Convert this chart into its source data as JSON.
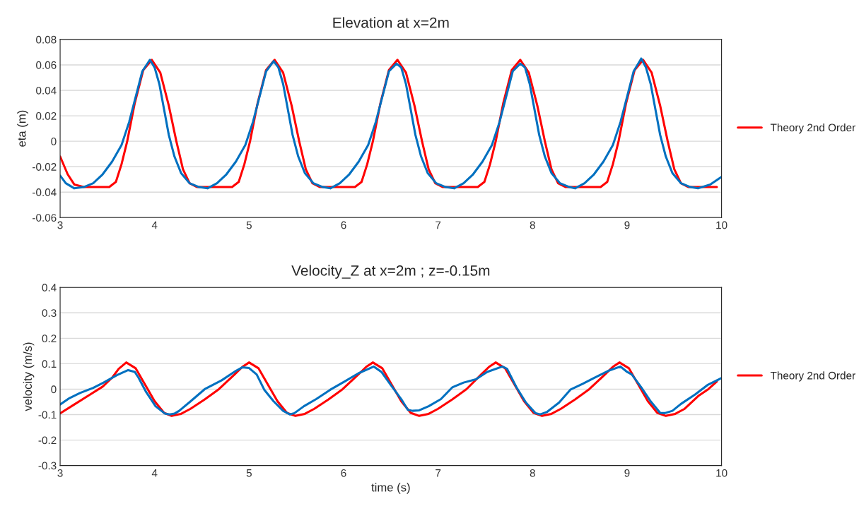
{
  "chart_data": [
    {
      "type": "line",
      "title": "Elevation at x=2m",
      "ylabel": "eta (m)",
      "xlim": [
        3,
        10
      ],
      "ylim": [
        -0.06,
        0.08
      ],
      "xticks": [
        3,
        4,
        5,
        6,
        7,
        8,
        9,
        10
      ],
      "yticks": [
        -0.06,
        -0.04,
        -0.02,
        0,
        0.02,
        0.04,
        0.06,
        0.08
      ],
      "grid": "y",
      "legend": "right",
      "series": [
        {
          "name": "Theory 2nd Order",
          "color": "#ff0000",
          "x": [
            3.0,
            3.08,
            3.15,
            3.25,
            3.4,
            3.52,
            3.59,
            3.65,
            3.71,
            3.79,
            3.88,
            3.97,
            4.06,
            4.15,
            4.23,
            4.3,
            4.37,
            4.45,
            4.62,
            4.82,
            4.89,
            4.95,
            5.01,
            5.09,
            5.18,
            5.27,
            5.36,
            5.45,
            5.53,
            5.6,
            5.67,
            5.75,
            5.92,
            6.12,
            6.19,
            6.25,
            6.31,
            6.39,
            6.48,
            6.57,
            6.66,
            6.75,
            6.83,
            6.9,
            6.97,
            7.05,
            7.22,
            7.42,
            7.49,
            7.55,
            7.61,
            7.69,
            7.78,
            7.87,
            7.96,
            8.05,
            8.13,
            8.2,
            8.27,
            8.35,
            8.52,
            8.72,
            8.79,
            8.85,
            8.91,
            8.99,
            9.08,
            9.17,
            9.26,
            9.35,
            9.43,
            9.5,
            9.57,
            9.65,
            9.8,
            9.95
          ],
          "values": [
            -0.012,
            -0.026,
            -0.034,
            -0.036,
            -0.036,
            -0.036,
            -0.032,
            -0.018,
            0.0,
            0.03,
            0.056,
            0.064,
            0.054,
            0.028,
            0.0,
            -0.022,
            -0.033,
            -0.036,
            -0.036,
            -0.036,
            -0.032,
            -0.018,
            0.0,
            0.03,
            0.056,
            0.064,
            0.054,
            0.028,
            0.0,
            -0.022,
            -0.033,
            -0.036,
            -0.036,
            -0.036,
            -0.032,
            -0.018,
            0.0,
            0.03,
            0.056,
            0.064,
            0.054,
            0.028,
            0.0,
            -0.022,
            -0.033,
            -0.036,
            -0.036,
            -0.036,
            -0.032,
            -0.018,
            0.0,
            0.03,
            0.056,
            0.064,
            0.054,
            0.028,
            0.0,
            -0.022,
            -0.033,
            -0.036,
            -0.036,
            -0.036,
            -0.032,
            -0.018,
            0.0,
            0.03,
            0.056,
            0.064,
            0.054,
            0.028,
            0.0,
            -0.022,
            -0.033,
            -0.036,
            -0.036,
            -0.036
          ]
        },
        {
          "color": "#0070c0",
          "x": [
            3.0,
            3.06,
            3.15,
            3.25,
            3.35,
            3.45,
            3.55,
            3.65,
            3.73,
            3.8,
            3.87,
            3.95,
            4.0,
            4.05,
            4.1,
            4.15,
            4.21,
            4.28,
            4.37,
            4.47,
            4.56,
            4.66,
            4.76,
            4.86,
            4.96,
            5.04,
            5.11,
            5.18,
            5.26,
            5.31,
            5.36,
            5.41,
            5.46,
            5.52,
            5.59,
            5.68,
            5.78,
            5.86,
            5.96,
            6.06,
            6.16,
            6.26,
            6.34,
            6.41,
            6.48,
            6.56,
            6.61,
            6.66,
            6.71,
            6.76,
            6.82,
            6.89,
            6.98,
            7.08,
            7.17,
            7.27,
            7.37,
            7.47,
            7.57,
            7.65,
            7.72,
            7.79,
            7.87,
            7.92,
            7.97,
            8.02,
            8.07,
            8.13,
            8.2,
            8.29,
            8.39,
            8.45,
            8.55,
            8.65,
            8.75,
            8.85,
            8.93,
            9.0,
            9.07,
            9.15,
            9.2,
            9.25,
            9.3,
            9.35,
            9.41,
            9.48,
            9.57,
            9.67,
            9.75,
            9.88,
            10.0
          ],
          "values": [
            -0.027,
            -0.033,
            -0.037,
            -0.036,
            -0.033,
            -0.026,
            -0.016,
            -0.003,
            0.015,
            0.035,
            0.055,
            0.064,
            0.058,
            0.045,
            0.025,
            0.005,
            -0.012,
            -0.025,
            -0.033,
            -0.036,
            -0.037,
            -0.033,
            -0.026,
            -0.016,
            -0.003,
            0.015,
            0.035,
            0.055,
            0.063,
            0.058,
            0.045,
            0.025,
            0.005,
            -0.012,
            -0.025,
            -0.033,
            -0.036,
            -0.037,
            -0.033,
            -0.026,
            -0.016,
            -0.003,
            0.015,
            0.035,
            0.055,
            0.061,
            0.058,
            0.045,
            0.025,
            0.005,
            -0.012,
            -0.025,
            -0.033,
            -0.036,
            -0.037,
            -0.033,
            -0.026,
            -0.016,
            -0.003,
            0.015,
            0.035,
            0.055,
            0.061,
            0.058,
            0.045,
            0.025,
            0.005,
            -0.012,
            -0.025,
            -0.033,
            -0.036,
            -0.037,
            -0.033,
            -0.026,
            -0.016,
            -0.003,
            0.015,
            0.035,
            0.055,
            0.065,
            0.058,
            0.045,
            0.025,
            0.005,
            -0.012,
            -0.025,
            -0.033,
            -0.036,
            -0.037,
            -0.034,
            -0.028
          ]
        }
      ]
    },
    {
      "type": "line",
      "title": "Velocity_Z at x=2m ; z=-0.15m",
      "xlabel": "time (s)",
      "ylabel": "velocity (m/s)",
      "xlim": [
        3,
        10
      ],
      "ylim": [
        -0.3,
        0.4
      ],
      "xticks": [
        3,
        4,
        5,
        6,
        7,
        8,
        9,
        10
      ],
      "yticks": [
        -0.3,
        -0.2,
        -0.1,
        0,
        0.1,
        0.2,
        0.3,
        0.4
      ],
      "grid": "y",
      "legend": "right",
      "series": [
        {
          "name": "Theory 2nd Order",
          "color": "#ff0000",
          "x": [
            3.0,
            3.15,
            3.3,
            3.45,
            3.55,
            3.62,
            3.7,
            3.8,
            3.9,
            4.0,
            4.1,
            4.18,
            4.28,
            4.38,
            4.53,
            4.68,
            4.85,
            4.93,
            5.0,
            5.1,
            5.2,
            5.3,
            5.4,
            5.49,
            5.59,
            5.69,
            5.84,
            5.99,
            6.16,
            6.24,
            6.31,
            6.41,
            6.51,
            6.61,
            6.71,
            6.8,
            6.9,
            7.0,
            7.15,
            7.3,
            7.46,
            7.54,
            7.61,
            7.71,
            7.81,
            7.91,
            8.01,
            8.1,
            8.2,
            8.3,
            8.45,
            8.6,
            8.77,
            8.85,
            8.92,
            9.02,
            9.12,
            9.22,
            9.32,
            9.41,
            9.51,
            9.61,
            9.76,
            9.86,
            9.95
          ],
          "values": [
            -0.095,
            -0.06,
            -0.025,
            0.01,
            0.045,
            0.08,
            0.105,
            0.082,
            0.017,
            -0.047,
            -0.093,
            -0.105,
            -0.097,
            -0.077,
            -0.04,
            0.0,
            0.059,
            0.088,
            0.105,
            0.082,
            0.017,
            -0.047,
            -0.093,
            -0.105,
            -0.097,
            -0.077,
            -0.04,
            0.0,
            0.059,
            0.088,
            0.105,
            0.082,
            0.017,
            -0.047,
            -0.093,
            -0.105,
            -0.097,
            -0.077,
            -0.04,
            0.0,
            0.059,
            0.088,
            0.105,
            0.082,
            0.017,
            -0.047,
            -0.093,
            -0.105,
            -0.097,
            -0.077,
            -0.04,
            0.0,
            0.059,
            0.088,
            0.105,
            0.082,
            0.017,
            -0.047,
            -0.093,
            -0.105,
            -0.097,
            -0.077,
            -0.025,
            0.0,
            0.03
          ]
        },
        {
          "color": "#0070c0",
          "x": [
            3.0,
            3.1,
            3.21,
            3.35,
            3.46,
            3.6,
            3.72,
            3.79,
            3.83,
            3.91,
            4.01,
            4.11,
            4.16,
            4.21,
            4.26,
            4.38,
            4.53,
            4.71,
            4.86,
            4.93,
            5.0,
            5.08,
            5.16,
            5.26,
            5.36,
            5.43,
            5.48,
            5.58,
            5.71,
            5.86,
            6.01,
            6.16,
            6.32,
            6.4,
            6.5,
            6.61,
            6.68,
            6.73,
            6.8,
            6.9,
            7.03,
            7.15,
            7.27,
            7.4,
            7.52,
            7.68,
            7.73,
            7.83,
            7.93,
            8.03,
            8.08,
            8.15,
            8.28,
            8.4,
            8.53,
            8.65,
            8.8,
            8.93,
            9.0,
            9.05,
            9.15,
            9.25,
            9.35,
            9.4,
            9.48,
            9.57,
            9.72,
            9.85,
            10.0
          ],
          "values": [
            -0.06,
            -0.035,
            -0.015,
            0.005,
            0.026,
            0.055,
            0.075,
            0.068,
            0.045,
            -0.011,
            -0.067,
            -0.096,
            -0.099,
            -0.096,
            -0.085,
            -0.048,
            0.0,
            0.035,
            0.072,
            0.086,
            0.083,
            0.058,
            -0.002,
            -0.048,
            -0.085,
            -0.099,
            -0.094,
            -0.067,
            -0.039,
            -0.002,
            0.03,
            0.063,
            0.089,
            0.068,
            0.016,
            -0.039,
            -0.081,
            -0.085,
            -0.083,
            -0.067,
            -0.039,
            0.007,
            0.026,
            0.039,
            0.068,
            0.089,
            0.08,
            0.007,
            -0.053,
            -0.094,
            -0.099,
            -0.09,
            -0.053,
            -0.002,
            0.021,
            0.044,
            0.072,
            0.089,
            0.068,
            0.058,
            0.007,
            -0.048,
            -0.093,
            -0.094,
            -0.085,
            -0.058,
            -0.021,
            0.016,
            0.044
          ]
        }
      ]
    }
  ]
}
